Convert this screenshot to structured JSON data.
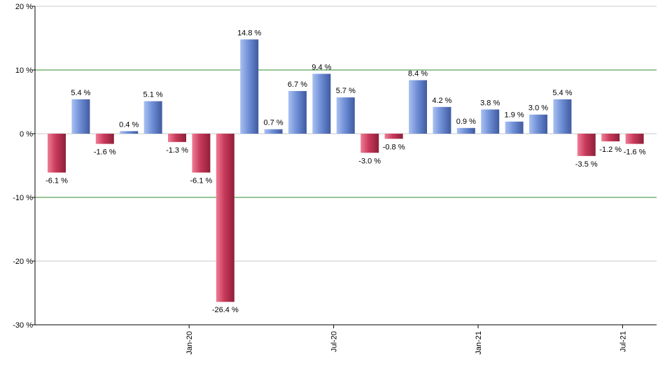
{
  "chart_data": {
    "type": "bar",
    "title": "",
    "xlabel": "",
    "ylabel": "",
    "ylim": [
      -30,
      20
    ],
    "y_ticks": [
      20,
      10,
      0,
      -10,
      -20,
      -30
    ],
    "y_tick_format": "{v} %",
    "grid": true,
    "reference_lines": [
      10,
      -10
    ],
    "values": [
      -6.1,
      5.4,
      -1.6,
      0.4,
      5.1,
      -1.3,
      -6.1,
      -26.4,
      14.8,
      0.7,
      6.7,
      9.4,
      5.7,
      -3.0,
      -0.8,
      8.4,
      4.2,
      0.9,
      3.8,
      1.9,
      3.0,
      5.4,
      -3.5,
      -1.2,
      -1.6
    ],
    "data_labels": [
      "-6.1 %",
      "5.4 %",
      "-1.6 %",
      "0.4 %",
      "5.1 %",
      "-1.3 %",
      "-6.1 %",
      "-26.4 %",
      "14.8 %",
      "0.7 %",
      "6.7 %",
      "9.4 %",
      "5.7 %",
      "-3.0 %",
      "-0.8 %",
      "8.4 %",
      "4.2 %",
      "0.9 %",
      "3.8 %",
      "1.9 %",
      "3.0 %",
      "5.4 %",
      "-3.5 %",
      "-1.2 %",
      "-1.6 %"
    ],
    "x_tick_labels": [
      {
        "index": 5.5,
        "label": "Jan-20"
      },
      {
        "index": 11.5,
        "label": "Jul-20"
      },
      {
        "index": 17.5,
        "label": "Jan-21"
      },
      {
        "index": 23.5,
        "label": "Jul-21"
      }
    ],
    "colors": {
      "positive": "#6f8fd6",
      "positive_light": "#a9c1f2",
      "positive_dark": "#3f5aa0",
      "negative": "#c8395a",
      "negative_light": "#f07e96",
      "negative_dark": "#8e1f3a",
      "gridline": "#c8c8c8",
      "reference_line": "#2e8b2e",
      "axis": "#000000"
    }
  }
}
